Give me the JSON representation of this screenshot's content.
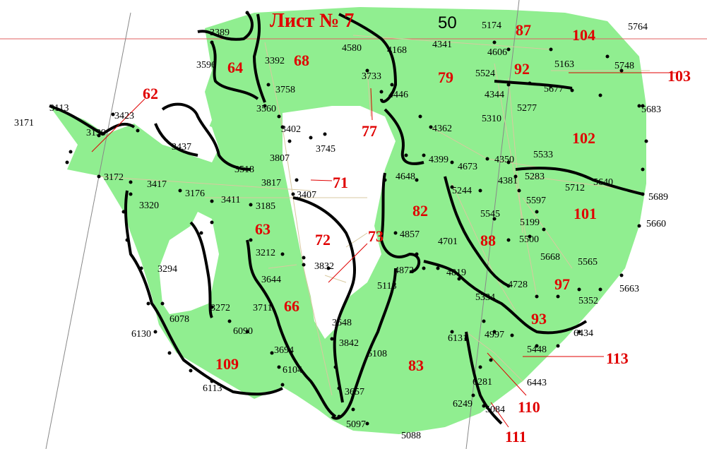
{
  "sheet_title": "Лист № 7",
  "grid_label": "50",
  "colors": {
    "land": "#90ee90",
    "boundary": "#000000",
    "plot_label": "#e00000",
    "link_line": "#e00000"
  },
  "plots": [
    "62",
    "64",
    "68",
    "71",
    "72",
    "73",
    "63",
    "66",
    "77",
    "79",
    "82",
    "83",
    "87",
    "88",
    "92",
    "93",
    "97",
    "101",
    "102",
    "103",
    "104",
    "109",
    "110",
    "111",
    "113"
  ],
  "points": [
    "3171",
    "3113",
    "3423",
    "3139",
    "3437",
    "3389",
    "3596",
    "3392",
    "3758",
    "3560",
    "3402",
    "3745",
    "4580",
    "4168",
    "3733",
    "4446",
    "3518",
    "3807",
    "3817",
    "3407",
    "3172",
    "3417",
    "3176",
    "3320",
    "3411",
    "3185",
    "3212",
    "3294",
    "3644",
    "3832",
    "3711",
    "3272",
    "6078",
    "6130",
    "6090",
    "6104",
    "6113",
    "3694",
    "3648",
    "3842",
    "3657",
    "5097",
    "5108",
    "5118",
    "4872",
    "4857",
    "4701",
    "4648",
    "4399",
    "4673",
    "4362",
    "4341",
    "5174",
    "4606",
    "5524",
    "4344",
    "5310",
    "5277",
    "5677",
    "5163",
    "5748",
    "5764",
    "5683",
    "4350",
    "4381",
    "5533",
    "5283",
    "5244",
    "5597",
    "5712",
    "5640",
    "5689",
    "5660",
    "5545",
    "5199",
    "5500",
    "5668",
    "5565",
    "4819",
    "4728",
    "5663",
    "5334",
    "5352",
    "4997",
    "6131",
    "6434",
    "5448",
    "6443",
    "6281",
    "6249",
    "5084",
    "5088"
  ]
}
